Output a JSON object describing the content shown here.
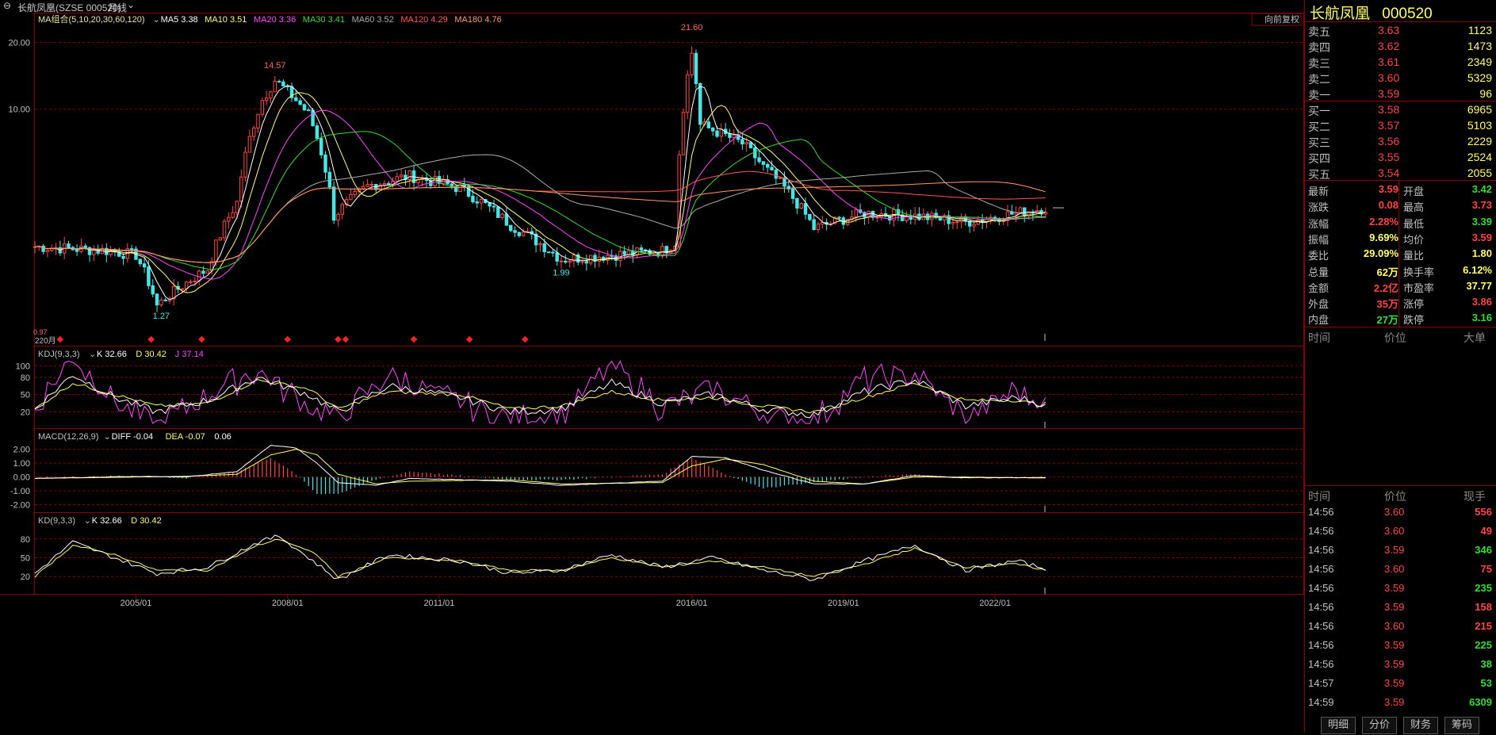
{
  "title_bar": {
    "ctrl_icon": "window-controls-icon",
    "stock": "长航凤凰(SZSE 000520)",
    "period": "月线",
    "dropdown_icon": "chevron-down-icon"
  },
  "ma_legend": [
    {
      "label": "MA组合(5,10,20,30,60,120)",
      "color": "#e8e8a0"
    },
    {
      "label": "MA5 3.38",
      "color": "#ffffff"
    },
    {
      "label": "MA10 3.51",
      "color": "#ffff66"
    },
    {
      "label": "MA20 3.36",
      "color": "#ff44ff"
    },
    {
      "label": "MA30 3.41",
      "color": "#33dd33"
    },
    {
      "label": "MA60 3.52",
      "color": "#aaaaaa"
    },
    {
      "label": "MA120 4.29",
      "color": "#ff5555"
    },
    {
      "label": "MA180 4.76",
      "color": "#ff9966"
    }
  ],
  "restore_label": "向前复权",
  "price_labels": {
    "high": "21.60",
    "peak2008": "14.57",
    "low2005": "1.27",
    "low2013": "1.99",
    "low_left": "0.97",
    "marker_220": "220月"
  },
  "kdj_legend": [
    {
      "label": "KDJ(9,3,3)",
      "color": "#c0c0c0"
    },
    {
      "label": "K 32.66",
      "color": "#ffffff"
    },
    {
      "label": "D 30.42",
      "color": "#ffff66"
    },
    {
      "label": "J 37.14",
      "color": "#ff44ff"
    }
  ],
  "macd_legend": [
    {
      "label": "MACD(12,26,9)",
      "color": "#c0c0c0"
    },
    {
      "label": "DIFF -0.04",
      "color": "#ffffff"
    },
    {
      "label": "DEA -0.07",
      "color": "#ffff66"
    },
    {
      "label": "0.06",
      "color": "#ffffff"
    }
  ],
  "kd_legend": [
    {
      "label": "KD(9,3,3)",
      "color": "#c0c0c0"
    },
    {
      "label": "K 32.66",
      "color": "#ffffff"
    },
    {
      "label": "D 30.42",
      "color": "#ffff66"
    }
  ],
  "x_dates": [
    "2005/01",
    "2008/01",
    "2011/01",
    "2016/01",
    "2019/01",
    "2022/01"
  ],
  "right_panel": {
    "name": "长航凤凰",
    "code": "000520",
    "asks": [
      {
        "label": "卖五",
        "price": "3.63",
        "vol": "1123"
      },
      {
        "label": "卖四",
        "price": "3.62",
        "vol": "1473"
      },
      {
        "label": "卖三",
        "price": "3.61",
        "vol": "2349"
      },
      {
        "label": "卖二",
        "price": "3.60",
        "vol": "5329"
      },
      {
        "label": "卖一",
        "price": "3.59",
        "vol": "96"
      }
    ],
    "bids": [
      {
        "label": "买一",
        "price": "3.58",
        "vol": "6965"
      },
      {
        "label": "买二",
        "price": "3.57",
        "vol": "5103"
      },
      {
        "label": "买三",
        "price": "3.56",
        "vol": "2229"
      },
      {
        "label": "买四",
        "price": "3.55",
        "vol": "2524"
      },
      {
        "label": "买五",
        "price": "3.54",
        "vol": "2055"
      }
    ],
    "stats": [
      {
        "l1": "最新",
        "v1": "3.59",
        "c1": "#ff4444",
        "l2": "开盘",
        "v2": "3.42",
        "c2": "#33dd33"
      },
      {
        "l1": "涨跌",
        "v1": "0.08",
        "c1": "#ff4444",
        "l2": "最高",
        "v2": "3.73",
        "c2": "#ff4444"
      },
      {
        "l1": "涨幅",
        "v1": "2.28%",
        "c1": "#ff4444",
        "l2": "最低",
        "v2": "3.39",
        "c2": "#33dd33"
      },
      {
        "l1": "振幅",
        "v1": "9.69%",
        "c1": "#ffff66",
        "l2": "均价",
        "v2": "3.59",
        "c2": "#ff4444"
      },
      {
        "l1": "委比",
        "v1": "29.09%",
        "c1": "#ffff66",
        "l2": "量比",
        "v2": "1.80",
        "c2": "#ffff66"
      },
      {
        "l1": "总量",
        "v1": "62万",
        "c1": "#ffff66",
        "l2": "换手率",
        "v2": "6.12%",
        "c2": "#ffff66"
      },
      {
        "l1": "金额",
        "v1": "2.2亿",
        "c1": "#ff4444",
        "l2": "市盈率",
        "v2": "37.77",
        "c2": "#ffff66"
      },
      {
        "l1": "外盘",
        "v1": "35万",
        "c1": "#ff4444",
        "l2": "涨停",
        "v2": "3.86",
        "c2": "#ff4444"
      },
      {
        "l1": "内盘",
        "v1": "27万",
        "c1": "#33dd33",
        "l2": "跌停",
        "v2": "3.16",
        "c2": "#33dd33"
      }
    ],
    "big_header": {
      "time": "时间",
      "price": "价位",
      "big": "大单"
    },
    "ticks_header": {
      "time": "时间",
      "price": "价位",
      "vol": "现手"
    },
    "ticks": [
      {
        "time": "14:56",
        "price": "3.60",
        "vol": "556",
        "c": "#ff4444"
      },
      {
        "time": "14:56",
        "price": "3.60",
        "vol": "49",
        "c": "#ff4444"
      },
      {
        "time": "14:56",
        "price": "3.59",
        "vol": "346",
        "c": "#33dd33"
      },
      {
        "time": "14:56",
        "price": "3.60",
        "vol": "75",
        "c": "#ff4444"
      },
      {
        "time": "14:56",
        "price": "3.59",
        "vol": "235",
        "c": "#33dd33"
      },
      {
        "time": "14:56",
        "price": "3.59",
        "vol": "158",
        "c": "#ff4444"
      },
      {
        "time": "14:56",
        "price": "3.60",
        "vol": "215",
        "c": "#ff4444"
      },
      {
        "time": "14:56",
        "price": "3.59",
        "vol": "225",
        "c": "#33dd33"
      },
      {
        "time": "14:56",
        "price": "3.59",
        "vol": "38",
        "c": "#33dd33"
      },
      {
        "time": "14:57",
        "price": "3.59",
        "vol": "53",
        "c": "#33dd33"
      },
      {
        "time": "14:59",
        "price": "3.59",
        "vol": "6309",
        "c": "#33dd33"
      }
    ],
    "tabs": [
      "明细",
      "分价",
      "财务",
      "筹码"
    ]
  },
  "chart_data": [
    {
      "type": "candlestick",
      "title": "长航凤凰(SZSE 000520) 月线",
      "ylim": [
        0.9,
        23.5
      ],
      "yscale": "log",
      "yticks": [
        10.0,
        20.0
      ],
      "ytick_labels": [
        "10.00",
        "20.00"
      ],
      "xlabels": [
        "2005/01",
        "2008/01",
        "2011/01",
        "2016/01",
        "2019/01",
        "2022/01"
      ],
      "annotations": [
        {
          "label": "21.60",
          "x": "2016/01",
          "y": 21.6
        },
        {
          "label": "14.57",
          "x": "2007/10",
          "y": 14.57
        },
        {
          "label": "1.27",
          "x": "2005/07",
          "y": 1.27
        },
        {
          "label": "1.99",
          "x": "2013/06",
          "y": 1.99
        }
      ],
      "close_anchors": [
        {
          "x": "2003/01",
          "y": 2.4
        },
        {
          "x": "2004/06",
          "y": 2.3
        },
        {
          "x": "2005/01",
          "y": 2.2
        },
        {
          "x": "2005/06",
          "y": 1.3
        },
        {
          "x": "2006/06",
          "y": 1.9
        },
        {
          "x": "2007/01",
          "y": 3.8
        },
        {
          "x": "2007/07",
          "y": 11.0
        },
        {
          "x": "2007/10",
          "y": 13.5
        },
        {
          "x": "2008/06",
          "y": 9.5
        },
        {
          "x": "2008/12",
          "y": 3.3
        },
        {
          "x": "2009/08",
          "y": 4.5
        },
        {
          "x": "2010/06",
          "y": 5.0
        },
        {
          "x": "2011/06",
          "y": 4.4
        },
        {
          "x": "2012/06",
          "y": 3.0
        },
        {
          "x": "2013/06",
          "y": 2.1
        },
        {
          "x": "2015/06",
          "y": 2.3
        },
        {
          "x": "2015/09",
          "y": 2.5
        },
        {
          "x": "2016/01",
          "y": 18.0
        },
        {
          "x": "2016/03",
          "y": 8.5
        },
        {
          "x": "2017/01",
          "y": 7.0
        },
        {
          "x": "2017/06",
          "y": 5.5
        },
        {
          "x": "2018/06",
          "y": 2.9
        },
        {
          "x": "2019/06",
          "y": 3.4
        },
        {
          "x": "2020/06",
          "y": 3.3
        },
        {
          "x": "2021/06",
          "y": 3.1
        },
        {
          "x": "2022/06",
          "y": 3.4
        },
        {
          "x": "2023/01",
          "y": 3.59
        }
      ],
      "ma_lines": [
        "MA5",
        "MA10",
        "MA20",
        "MA30",
        "MA60",
        "MA120",
        "MA180"
      ]
    },
    {
      "type": "line",
      "title": "KDJ(9,3,3)",
      "ylim": [
        0,
        110
      ],
      "yticks": [
        20,
        50,
        80,
        100
      ],
      "series": [
        {
          "name": "K",
          "color": "#ffffff"
        },
        {
          "name": "D",
          "color": "#ffff66"
        },
        {
          "name": "J",
          "color": "#ff44ff"
        }
      ],
      "anchors": [
        {
          "x": "2003/01",
          "k": 25,
          "d": 25
        },
        {
          "x": "2003/10",
          "k": 85,
          "d": 70
        },
        {
          "x": "2004/08",
          "k": 45,
          "d": 50
        },
        {
          "x": "2005/06",
          "k": 20,
          "d": 30
        },
        {
          "x": "2006/06",
          "k": 40,
          "d": 35
        },
        {
          "x": "2007/06",
          "k": 80,
          "d": 75
        },
        {
          "x": "2008/06",
          "k": 50,
          "d": 60
        },
        {
          "x": "2009/01",
          "k": 20,
          "d": 25
        },
        {
          "x": "2010/01",
          "k": 65,
          "d": 55
        },
        {
          "x": "2011/06",
          "k": 45,
          "d": 50
        },
        {
          "x": "2012/06",
          "k": 20,
          "d": 25
        },
        {
          "x": "2013/06",
          "k": 25,
          "d": 30
        },
        {
          "x": "2014/06",
          "k": 70,
          "d": 55
        },
        {
          "x": "2015/06",
          "k": 35,
          "d": 40
        },
        {
          "x": "2016/06",
          "k": 50,
          "d": 45
        },
        {
          "x": "2017/06",
          "k": 25,
          "d": 30
        },
        {
          "x": "2018/06",
          "k": 15,
          "d": 20
        },
        {
          "x": "2019/06",
          "k": 55,
          "d": 45
        },
        {
          "x": "2020/06",
          "k": 75,
          "d": 70
        },
        {
          "x": "2021/06",
          "k": 30,
          "d": 40
        },
        {
          "x": "2022/06",
          "k": 45,
          "d": 40
        },
        {
          "x": "2023/01",
          "k": 32.66,
          "d": 30.42
        }
      ]
    },
    {
      "type": "line",
      "title": "MACD(12,26,9)",
      "ylim": [
        -2.2,
        2.5
      ],
      "yticks": [
        -2.0,
        -1.0,
        0.0,
        1.0,
        2.0
      ],
      "ytick_labels": [
        "-2.00",
        "-1.00",
        "0.00",
        "1.00",
        "2.00"
      ],
      "series": [
        {
          "name": "DIFF",
          "color": "#ffffff"
        },
        {
          "name": "DEA",
          "color": "#ffff66"
        },
        {
          "name": "MACD",
          "color": "#ff4444"
        }
      ],
      "anchors": [
        {
          "x": "2003/01",
          "diff": -0.1,
          "dea": -0.1
        },
        {
          "x": "2005/01",
          "diff": 0.05,
          "dea": 0.0
        },
        {
          "x": "2006/01",
          "diff": 0.0,
          "dea": 0.05
        },
        {
          "x": "2007/01",
          "diff": 0.4,
          "dea": 0.2
        },
        {
          "x": "2007/09",
          "diff": 2.3,
          "dea": 1.6
        },
        {
          "x": "2008/03",
          "diff": 2.1,
          "dea": 2.0
        },
        {
          "x": "2008/08",
          "diff": 1.0,
          "dea": 1.6
        },
        {
          "x": "2009/01",
          "diff": -0.4,
          "dea": 0.2
        },
        {
          "x": "2009/10",
          "diff": -0.6,
          "dea": -0.5
        },
        {
          "x": "2010/06",
          "diff": -0.1,
          "dea": -0.3
        },
        {
          "x": "2012/06",
          "diff": -0.3,
          "dea": -0.2
        },
        {
          "x": "2013/06",
          "diff": -0.6,
          "dea": -0.5
        },
        {
          "x": "2015/06",
          "diff": -0.3,
          "dea": -0.4
        },
        {
          "x": "2016/01",
          "diff": 1.5,
          "dea": 0.8
        },
        {
          "x": "2016/09",
          "diff": 1.4,
          "dea": 1.3
        },
        {
          "x": "2017/06",
          "diff": 0.5,
          "dea": 0.9
        },
        {
          "x": "2018/06",
          "diff": -0.5,
          "dea": -0.3
        },
        {
          "x": "2019/06",
          "diff": -0.5,
          "dea": -0.5
        },
        {
          "x": "2020/06",
          "diff": 0.1,
          "dea": 0.0
        },
        {
          "x": "2021/06",
          "diff": -0.05,
          "dea": 0.0
        },
        {
          "x": "2023/01",
          "diff": -0.04,
          "dea": -0.07
        }
      ]
    },
    {
      "type": "line",
      "title": "KD(9,3,3)",
      "ylim": [
        0,
        100
      ],
      "yticks": [
        20,
        50,
        80
      ],
      "series": [
        {
          "name": "K",
          "color": "#ffffff"
        },
        {
          "name": "D",
          "color": "#ffff66"
        }
      ],
      "anchors": [
        {
          "x": "2003/01",
          "k": 25,
          "d": 20
        },
        {
          "x": "2003/10",
          "k": 75,
          "d": 70
        },
        {
          "x": "2004/08",
          "k": 50,
          "d": 55
        },
        {
          "x": "2005/06",
          "k": 25,
          "d": 30
        },
        {
          "x": "2006/06",
          "k": 35,
          "d": 30
        },
        {
          "x": "2007/06",
          "k": 75,
          "d": 70
        },
        {
          "x": "2007/11",
          "k": 85,
          "d": 80
        },
        {
          "x": "2008/08",
          "k": 40,
          "d": 55
        },
        {
          "x": "2009/01",
          "k": 15,
          "d": 20
        },
        {
          "x": "2010/01",
          "k": 55,
          "d": 50
        },
        {
          "x": "2011/06",
          "k": 45,
          "d": 45
        },
        {
          "x": "2012/06",
          "k": 25,
          "d": 30
        },
        {
          "x": "2013/06",
          "k": 30,
          "d": 30
        },
        {
          "x": "2014/06",
          "k": 55,
          "d": 50
        },
        {
          "x": "2015/06",
          "k": 35,
          "d": 35
        },
        {
          "x": "2016/06",
          "k": 50,
          "d": 45
        },
        {
          "x": "2017/06",
          "k": 30,
          "d": 35
        },
        {
          "x": "2018/06",
          "k": 15,
          "d": 20
        },
        {
          "x": "2019/06",
          "k": 45,
          "d": 40
        },
        {
          "x": "2020/06",
          "k": 70,
          "d": 65
        },
        {
          "x": "2021/06",
          "k": 30,
          "d": 35
        },
        {
          "x": "2022/06",
          "k": 45,
          "d": 40
        },
        {
          "x": "2023/01",
          "k": 32.66,
          "d": 30.42
        }
      ]
    }
  ]
}
